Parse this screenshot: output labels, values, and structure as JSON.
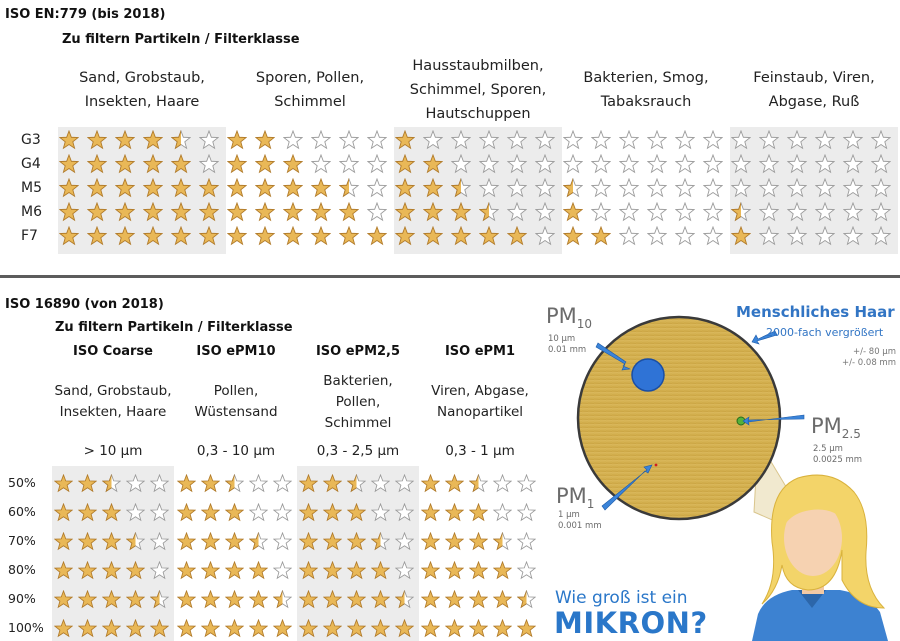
{
  "section1": {
    "title": "ISO EN:779 (bis 2018)",
    "subtitle": "Zu filtern Partikeln / Filterklasse",
    "categories": [
      [
        "Sand, Grobstaub,",
        "Insekten, Haare"
      ],
      [
        "Sporen, Pollen,",
        "Schimmel"
      ],
      [
        "Hausstaubmilben,",
        "Schimmel, Sporen,",
        "Hautschuppen"
      ],
      [
        "Bakterien, Smog,",
        "Tabaksrauch"
      ],
      [
        "Feinstaub, Viren,",
        "Abgase, Ruß"
      ]
    ],
    "rows": [
      {
        "label": "G3",
        "ratings": [
          4.5,
          2,
          1,
          0,
          0
        ]
      },
      {
        "label": "G4",
        "ratings": [
          5,
          3,
          2,
          0,
          0
        ]
      },
      {
        "label": "M5",
        "ratings": [
          6,
          4.5,
          2.5,
          0.5,
          0
        ]
      },
      {
        "label": "M6",
        "ratings": [
          6,
          5,
          3.5,
          1,
          0.5
        ]
      },
      {
        "label": "F7",
        "ratings": [
          6,
          6,
          5,
          2,
          1
        ]
      }
    ],
    "stars_per_category": 6
  },
  "section2": {
    "title": "ISO 16890 (von 2018)",
    "subtitle": "Zu filtern Partikeln / Filterklasse",
    "classes": [
      {
        "name": "ISO Coarse",
        "desc": [
          "Sand, Grobstaub,",
          "Insekten, Haare"
        ],
        "size": "> 10 µm"
      },
      {
        "name": "ISO ePM10",
        "desc": [
          "Pollen,",
          "Wüstensand"
        ],
        "size": "0,3 - 10 µm"
      },
      {
        "name": "ISO ePM2,5",
        "desc": [
          "Bakterien,",
          "Pollen,",
          "Schimmel"
        ],
        "size": "0,3 - 2,5 µm"
      },
      {
        "name": "ISO ePM1",
        "desc": [
          "Viren, Abgase,",
          "Nanopartikel"
        ],
        "size": "0,3 - 1 µm"
      }
    ],
    "rows": [
      {
        "label": "50%",
        "ratings": [
          2.5,
          2.5,
          2.5,
          2.5
        ]
      },
      {
        "label": "60%",
        "ratings": [
          3,
          3,
          3,
          3
        ]
      },
      {
        "label": "70%",
        "ratings": [
          3.5,
          3.5,
          3.5,
          3.5
        ]
      },
      {
        "label": "80%",
        "ratings": [
          4,
          4,
          4,
          4
        ]
      },
      {
        "label": "90%",
        "ratings": [
          4.5,
          4.5,
          4.5,
          4.5
        ]
      },
      {
        "label": "100%",
        "ratings": [
          5,
          5,
          5,
          5
        ]
      }
    ],
    "stars_per_class": 5
  },
  "infographic": {
    "pm10": {
      "main": "PM",
      "sub": "10",
      "detail": [
        "10 µm",
        "0.01 mm"
      ]
    },
    "pm25": {
      "main": "PM",
      "sub": "2.5",
      "detail": [
        "2.5 µm",
        "0.0025 mm"
      ]
    },
    "pm1": {
      "main": "PM",
      "sub": "1",
      "detail": [
        "1 µm",
        "0.001 mm"
      ]
    },
    "haar_title": "Menschliches Haar",
    "haar_subtitle": "2000-fach vergrößert",
    "haar_tolerance": [
      "+/- 80 µm",
      "+/- 0.08 mm"
    ],
    "question": "Wie groß ist ein",
    "answer": "MIKRON?"
  },
  "colors": {
    "star_fill": "#e9b857",
    "star_stroke": "#b07a2a",
    "star_empty_stroke": "#9a9a9a",
    "hair_disc": "#d6b354",
    "accent_blue": "#3275c4"
  }
}
